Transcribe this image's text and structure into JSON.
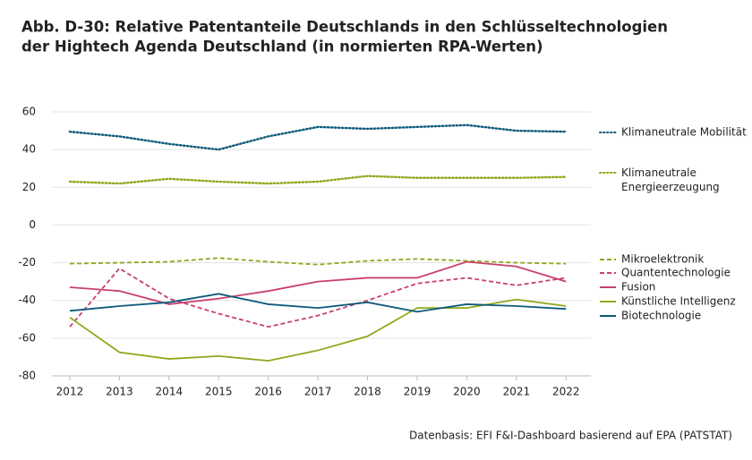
{
  "chart_data": {
    "type": "line",
    "title": [
      "Abb. D-30: Relative Patentanteile Deutschlands in den Schlüsseltechnologien",
      "der Hightech Agenda Deutschland (in normierten RPA-Werten)"
    ],
    "source": "Datenbasis: EFI F&I-Dashboard basierend auf EPA (PATSTAT)",
    "x": [
      2012,
      2013,
      2014,
      2015,
      2016,
      2017,
      2018,
      2019,
      2020,
      2021,
      2022
    ],
    "xlim": [
      2011.64,
      2022.5
    ],
    "xticks": [
      2012,
      2013,
      2014,
      2015,
      2016,
      2017,
      2018,
      2019,
      2020,
      2021,
      2022
    ],
    "ylim": [
      -80,
      60
    ],
    "yticks": [
      -80,
      -60,
      -40,
      -20,
      0,
      20,
      40,
      60
    ],
    "grid": true,
    "legend": "right",
    "series": [
      {
        "name": "Klimaneutrale Mobilität",
        "color": "#0d5a7c",
        "style": "dotted",
        "values": [
          49.5,
          47,
          43,
          40,
          47,
          52,
          51,
          52,
          53,
          50,
          49.5
        ]
      },
      {
        "name": "Klimaneutrale Energieerzeugung",
        "color": "#8fa81c",
        "style": "dotted",
        "values": [
          23,
          22,
          24.5,
          23,
          22,
          23,
          26,
          25,
          25,
          25,
          25.5
        ]
      },
      {
        "name": "Mikroelektronik",
        "color": "#8fa81c",
        "style": "dashed",
        "values": [
          -20.5,
          -20,
          -19.5,
          -17.5,
          -19.5,
          -21,
          -19,
          -18,
          -19,
          -20,
          -20.5
        ]
      },
      {
        "name": "Quantentechnologie",
        "color": "#c9406d",
        "style": "dashed",
        "values": [
          -54,
          -23,
          -39,
          -47,
          -54,
          -48,
          -40,
          -31,
          -28,
          -32,
          -28
        ]
      },
      {
        "name": "Fusion",
        "color": "#c9406d",
        "style": "solid",
        "values": [
          -33,
          -35,
          -42,
          -39,
          -35,
          -30,
          -28,
          -28,
          -19.5,
          -22,
          -30
        ]
      },
      {
        "name": "Künstliche Intelligenz",
        "color": "#8fa81c",
        "style": "solid",
        "values": [
          -49,
          -67.5,
          -71,
          -69.5,
          -72,
          -66.5,
          -59,
          -44,
          -44,
          -39.5,
          -43
        ]
      },
      {
        "name": "Biotechnologie",
        "color": "#0d5a7c",
        "style": "solid",
        "values": [
          -45.5,
          -43,
          -41,
          -36.5,
          -42,
          -44,
          -41,
          -46,
          -42,
          -43,
          -44.5
        ]
      }
    ]
  }
}
